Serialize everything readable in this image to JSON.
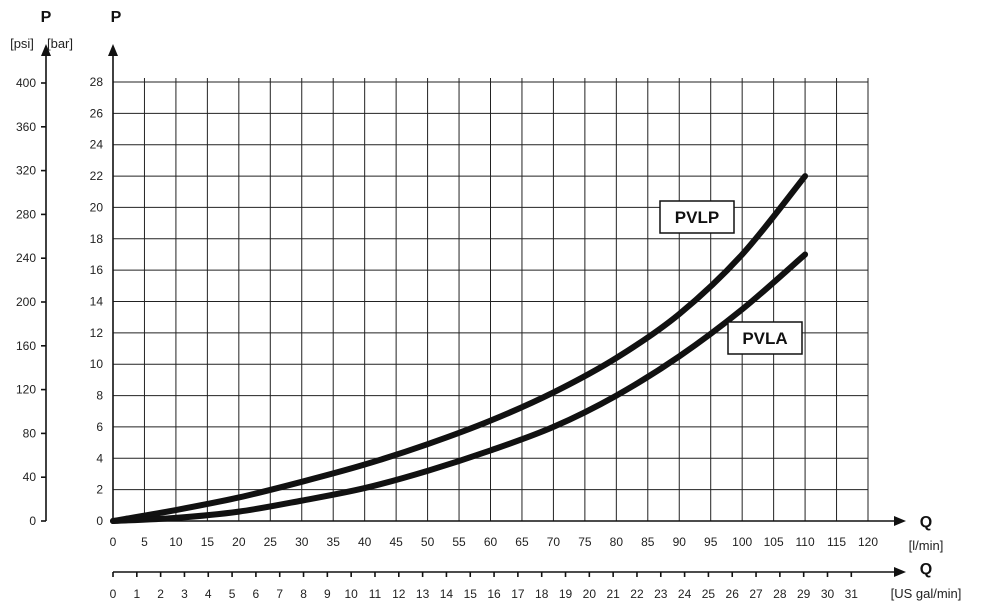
{
  "chart_data": {
    "type": "line",
    "title": "",
    "y_left": {
      "label": "P",
      "unit": "[psi]",
      "ticks": [
        "0",
        "40",
        "80",
        "120",
        "160",
        "200",
        "240",
        "280",
        "320",
        "360",
        "400"
      ]
    },
    "y_main": {
      "label": "P",
      "unit": "[bar]",
      "range": [
        0,
        28
      ],
      "ticks": [
        "0",
        "2",
        "4",
        "6",
        "8",
        "10",
        "12",
        "14",
        "16",
        "18",
        "20",
        "22",
        "24",
        "26",
        "28"
      ]
    },
    "x_main": {
      "label": "Q",
      "unit": "[l/min]",
      "range": [
        0,
        120
      ],
      "tick_labels": [
        "0",
        "5",
        "10",
        "15",
        "20",
        "25",
        "30",
        "35",
        "40",
        "45",
        "50",
        "55",
        "60",
        "65",
        "70",
        "75",
        "80",
        "85",
        "90",
        "95",
        "100",
        "105",
        "110",
        "115",
        "120"
      ]
    },
    "x_secondary": {
      "label": "Q",
      "unit": "[US gal/min]",
      "tick_labels": [
        "0",
        "1",
        "2",
        "3",
        "4",
        "5",
        "6",
        "7",
        "8",
        "9",
        "10",
        "11",
        "12",
        "13",
        "14",
        "15",
        "16",
        "17",
        "18",
        "19",
        "20",
        "21",
        "22",
        "23",
        "24",
        "25",
        "26",
        "27",
        "28",
        "29",
        "30",
        "31"
      ]
    },
    "series": [
      {
        "name": "PVLP",
        "x": [
          0,
          10,
          20,
          30,
          40,
          50,
          60,
          70,
          80,
          90,
          100,
          110
        ],
        "y": [
          0,
          0.7,
          1.5,
          2.5,
          3.6,
          4.9,
          6.4,
          8.2,
          10.4,
          13.2,
          17.0,
          22.0
        ]
      },
      {
        "name": "PVLA",
        "x": [
          0,
          10,
          20,
          30,
          40,
          50,
          60,
          70,
          80,
          90,
          100,
          110
        ],
        "y": [
          0,
          0.2,
          0.6,
          1.3,
          2.1,
          3.2,
          4.5,
          6.0,
          8.0,
          10.5,
          13.5,
          17.0
        ]
      }
    ],
    "grid": true
  }
}
